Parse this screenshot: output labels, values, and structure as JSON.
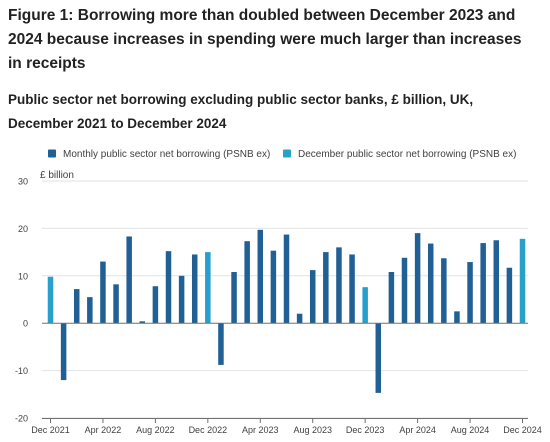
{
  "figure": {
    "title": "Figure 1: Borrowing more than doubled between December 2023 and 2024 because increases in spending were much larger than increases in receipts",
    "subtitle": "Public sector net borrowing excluding public sector banks, £ billion, UK, December 2021 to December 2024"
  },
  "colors": {
    "monthly": "#206095",
    "december": "#27a0cc",
    "axis": "#707070",
    "grid": "#e2e2e3",
    "text": "#222222",
    "tick_text": "#414042"
  },
  "chart_data": {
    "type": "bar",
    "ylabel": "£ billion",
    "ylim": [
      -20,
      30
    ],
    "yticks": [
      -20,
      -10,
      0,
      10,
      20,
      30
    ],
    "grid": true,
    "legend_position": "top",
    "series": [
      {
        "name": "Monthly public sector net borrowing (PSNB ex)",
        "color": "#206095"
      },
      {
        "name": "December public sector net borrowing (PSNB ex)",
        "color": "#27a0cc"
      }
    ],
    "categories": [
      "Dec 2021",
      "Jan 2022",
      "Feb 2022",
      "Mar 2022",
      "Apr 2022",
      "May 2022",
      "Jun 2022",
      "Jul 2022",
      "Aug 2022",
      "Sep 2022",
      "Oct 2022",
      "Nov 2022",
      "Dec 2022",
      "Jan 2023",
      "Feb 2023",
      "Mar 2023",
      "Apr 2023",
      "May 2023",
      "Jun 2023",
      "Jul 2023",
      "Aug 2023",
      "Sep 2023",
      "Oct 2023",
      "Nov 2023",
      "Dec 2023",
      "Jan 2024",
      "Feb 2024",
      "Mar 2024",
      "Apr 2024",
      "May 2024",
      "Jun 2024",
      "Jul 2024",
      "Aug 2024",
      "Sep 2024",
      "Oct 2024",
      "Nov 2024",
      "Dec 2024"
    ],
    "values": [
      9.8,
      -12.0,
      7.2,
      5.5,
      13.0,
      8.2,
      18.3,
      0.4,
      7.8,
      15.2,
      10.0,
      14.5,
      15.0,
      -8.8,
      10.8,
      17.3,
      19.7,
      15.3,
      18.7,
      2.0,
      11.2,
      15.0,
      16.0,
      14.5,
      7.6,
      -14.7,
      10.8,
      13.8,
      19.0,
      16.8,
      13.7,
      2.5,
      12.9,
      16.9,
      17.5,
      11.7,
      17.8
    ],
    "series_index": [
      1,
      0,
      0,
      0,
      0,
      0,
      0,
      0,
      0,
      0,
      0,
      0,
      1,
      0,
      0,
      0,
      0,
      0,
      0,
      0,
      0,
      0,
      0,
      0,
      1,
      0,
      0,
      0,
      0,
      0,
      0,
      0,
      0,
      0,
      0,
      0,
      1
    ],
    "xtick_labels": [
      "Dec 2021",
      "Apr 2022",
      "Aug 2022",
      "Dec 2022",
      "Apr 2023",
      "Aug 2023",
      "Dec 2023",
      "Apr 2024",
      "Aug 2024",
      "Dec 2024"
    ]
  }
}
